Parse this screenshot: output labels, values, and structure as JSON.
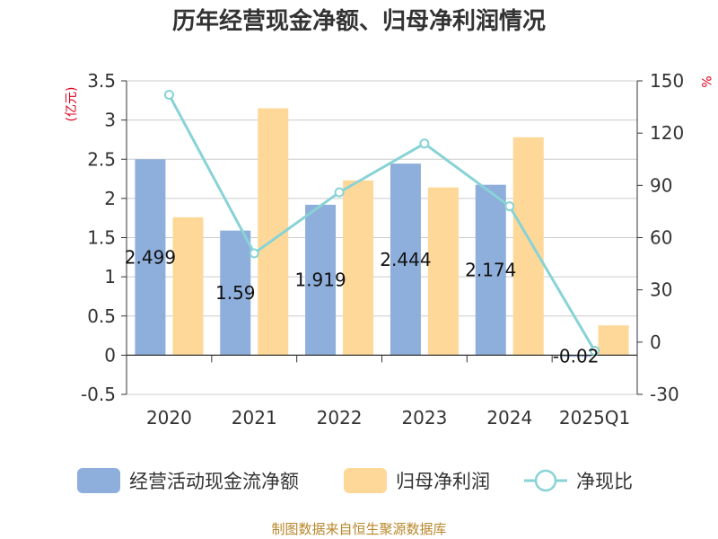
{
  "chart_data": {
    "type": "bar",
    "title": "历年经营现金净额、归母净利润情况",
    "categories": [
      "2020",
      "2021",
      "2022",
      "2023",
      "2024",
      "2025Q1"
    ],
    "series": [
      {
        "name": "经营活动现金流净额",
        "type": "bar",
        "axis": "left",
        "color": "#8eaedb",
        "values": [
          2.499,
          1.59,
          1.919,
          2.444,
          2.174,
          -0.02
        ],
        "labels": [
          "2.499",
          "1.59",
          "1.919",
          "2.444",
          "2.174",
          "-0.02"
        ]
      },
      {
        "name": "归母净利润",
        "type": "bar",
        "axis": "left",
        "color": "#fed898",
        "values": [
          1.76,
          3.15,
          2.23,
          2.14,
          2.78,
          0.38
        ]
      },
      {
        "name": "净现比",
        "type": "line",
        "axis": "right",
        "color": "#88d3d6",
        "values": [
          142,
          51,
          86,
          114,
          78,
          -5
        ]
      }
    ],
    "y_left": {
      "unit": "(亿元)",
      "min": -0.5,
      "max": 3.5,
      "ticks": [
        "-0.5",
        "0",
        "0.5",
        "1",
        "1.5",
        "2",
        "2.5",
        "3",
        "3.5"
      ]
    },
    "y_right": {
      "unit": "%",
      "min": -30,
      "max": 150,
      "ticks": [
        "-30",
        "0",
        "30",
        "60",
        "90",
        "120",
        "150"
      ]
    },
    "grid": true,
    "legend": "bottom",
    "source": "制图数据来自恒生聚源数据库"
  }
}
